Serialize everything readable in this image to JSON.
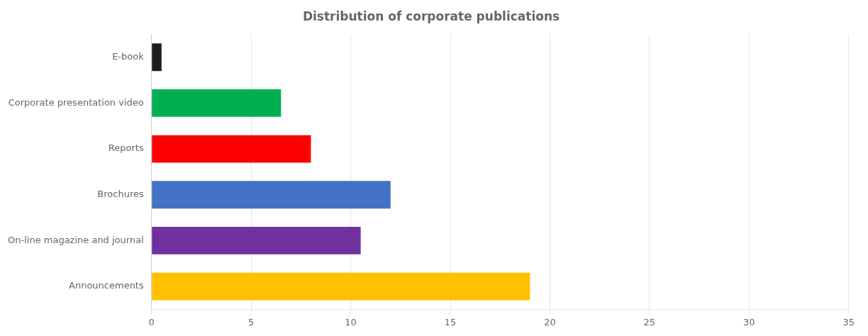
{
  "chart_data": {
    "type": "bar",
    "orientation": "horizontal",
    "title": "Distribution of corporate publications",
    "categories": [
      "Announcements",
      "On-line magazine and journal",
      "Brochures",
      "Reports",
      "Corporate presentation video",
      "E-book"
    ],
    "values": [
      19,
      10.5,
      12,
      8,
      6.5,
      0.5
    ],
    "colors": [
      "#FFC000",
      "#7030A0",
      "#4472C4",
      "#FF0000",
      "#00B050",
      "#1C1C1C"
    ],
    "xlim": [
      0,
      35
    ],
    "xticks": [
      0,
      5,
      10,
      15,
      20,
      25,
      30,
      35
    ],
    "grid": true
  }
}
